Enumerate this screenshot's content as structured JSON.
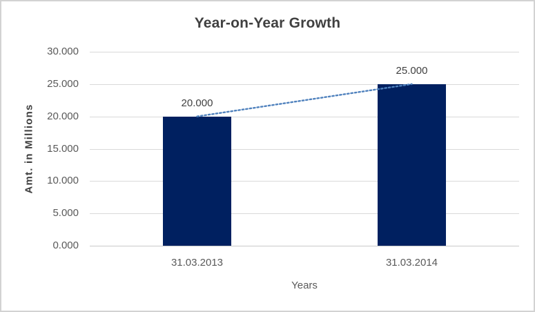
{
  "chart_data": {
    "type": "bar",
    "title": "Year-on-Year Growth",
    "xlabel": "Years",
    "ylabel": "Amt. in Millions",
    "categories": [
      "31.03.2013",
      "31.03.2014"
    ],
    "values": [
      20000,
      25000
    ],
    "data_labels": [
      "20.000",
      "25.000"
    ],
    "ylim": [
      0,
      30000
    ],
    "y_ticks": [
      {
        "value": 0,
        "label": "0.000"
      },
      {
        "value": 5000,
        "label": "5.000"
      },
      {
        "value": 10000,
        "label": "10.000"
      },
      {
        "value": 15000,
        "label": "15.000"
      },
      {
        "value": 20000,
        "label": "20.000"
      },
      {
        "value": 25000,
        "label": "25.000"
      },
      {
        "value": 30000,
        "label": "30.000"
      }
    ],
    "grid": true,
    "legend_position": "none",
    "bar_color": "#002060",
    "trendline": {
      "style": "dotted",
      "color": "#4f81bd",
      "from_value": 20000,
      "to_value": 25000
    }
  }
}
